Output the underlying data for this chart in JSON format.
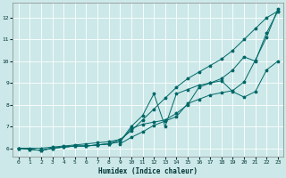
{
  "xlabel": "Humidex (Indice chaleur)",
  "bg_color": "#cce8e8",
  "grid_color": "#ffffff",
  "line_color": "#006868",
  "xlim": [
    -0.5,
    23.5
  ],
  "ylim": [
    5.6,
    12.7
  ],
  "xticks": [
    0,
    1,
    2,
    3,
    4,
    5,
    6,
    7,
    8,
    9,
    10,
    11,
    12,
    13,
    14,
    15,
    16,
    17,
    18,
    19,
    20,
    21,
    22,
    23
  ],
  "yticks": [
    6,
    7,
    8,
    9,
    10,
    11,
    12
  ],
  "lines": [
    {
      "x": [
        0,
        1,
        2,
        3,
        4,
        5,
        6,
        7,
        8,
        9,
        10,
        11,
        12,
        13,
        14,
        15,
        16,
        17,
        18,
        19,
        20,
        21,
        22,
        23
      ],
      "y": [
        6.0,
        6.0,
        6.0,
        6.05,
        6.1,
        6.15,
        6.2,
        6.25,
        6.3,
        6.4,
        6.8,
        7.3,
        7.8,
        8.3,
        8.8,
        9.2,
        9.5,
        9.8,
        10.1,
        10.5,
        11.0,
        11.5,
        12.0,
        12.3
      ]
    },
    {
      "x": [
        0,
        1,
        2,
        3,
        4,
        5,
        6,
        7,
        8,
        9,
        10,
        11,
        12,
        13,
        14,
        15,
        16,
        17,
        18,
        19,
        20,
        21,
        22,
        23
      ],
      "y": [
        6.0,
        5.95,
        5.9,
        6.0,
        6.05,
        6.1,
        6.1,
        6.15,
        6.2,
        6.3,
        7.0,
        7.5,
        8.5,
        7.0,
        8.5,
        8.7,
        8.9,
        9.0,
        9.2,
        9.6,
        10.2,
        10.0,
        11.3,
        12.3
      ]
    },
    {
      "x": [
        0,
        1,
        2,
        3,
        4,
        5,
        6,
        7,
        8,
        9,
        10,
        11,
        12,
        13,
        14,
        15,
        16,
        17,
        18,
        19,
        20,
        21,
        22,
        23
      ],
      "y": [
        6.0,
        5.95,
        5.9,
        6.0,
        6.05,
        6.1,
        6.1,
        6.15,
        6.2,
        6.3,
        6.9,
        7.1,
        7.2,
        7.3,
        7.6,
        8.0,
        8.8,
        9.0,
        9.1,
        8.6,
        8.35,
        8.6,
        9.6,
        10.0
      ]
    },
    {
      "x": [
        0,
        1,
        2,
        3,
        4,
        5,
        6,
        7,
        8,
        9,
        9,
        10,
        11,
        12,
        13,
        14,
        15,
        16,
        17,
        18,
        19,
        20,
        21,
        22,
        23
      ],
      "y": [
        6.0,
        5.95,
        5.9,
        6.0,
        6.05,
        6.1,
        6.1,
        6.15,
        6.2,
        6.4,
        6.2,
        6.5,
        6.75,
        7.05,
        7.25,
        7.45,
        8.05,
        8.25,
        8.45,
        8.55,
        8.65,
        9.05,
        10.05,
        11.1,
        12.4
      ]
    }
  ]
}
